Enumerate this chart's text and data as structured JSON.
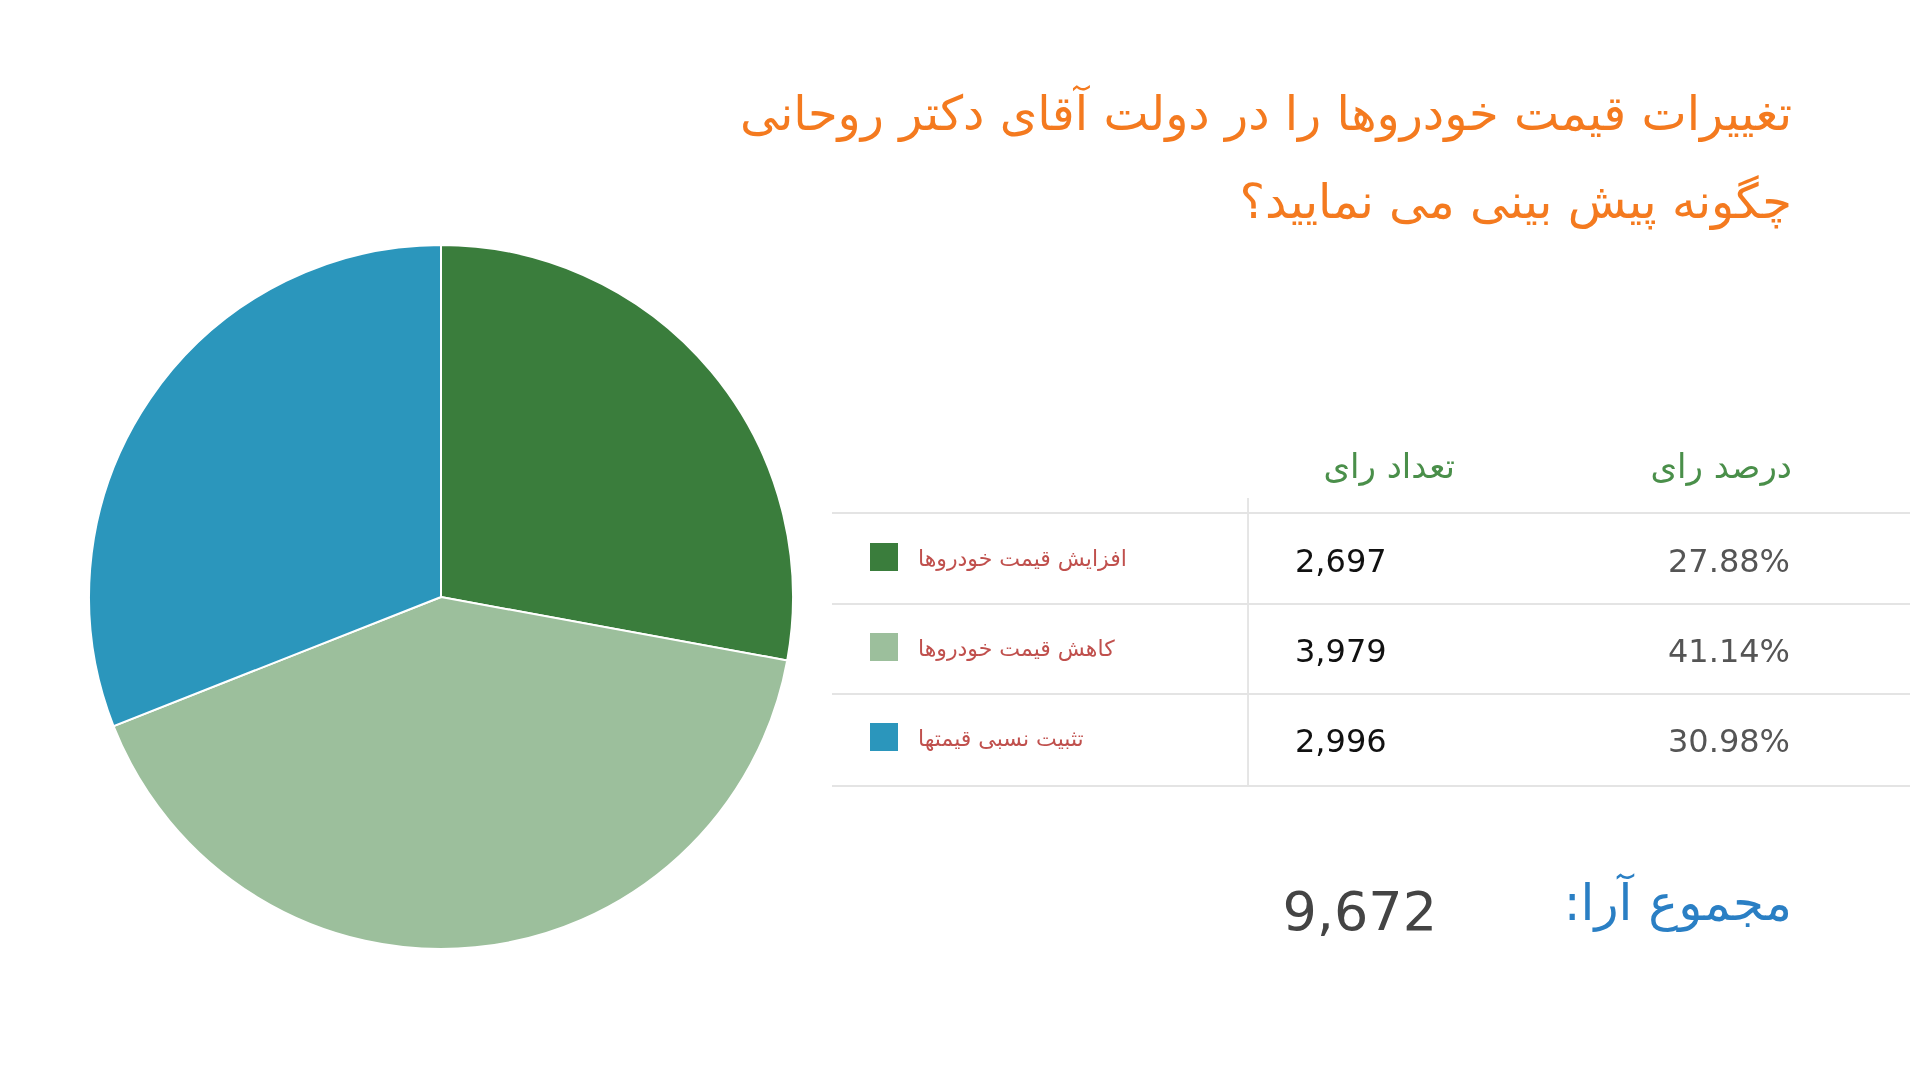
{
  "chart_data": {
    "type": "pie",
    "title": "تغییرات قیمت خودروها را در دولت آقای دکتر روحانی چگونه پیش بینی می نمایید؟",
    "categories": [
      "افزایش قیمت خودروها",
      "کاهش قیمت خودروها",
      "تثبیت نسبی قیمتها"
    ],
    "values": [
      2697,
      3979,
      2996
    ],
    "colors": [
      "#3a7d3c",
      "#9cbf9c",
      "#2b96bc"
    ],
    "value_labels": [
      "2,697",
      "3,979",
      "2,996"
    ],
    "legend": "right",
    "annotations": [
      "تعداد رای",
      "درصد رای",
      "مجموع آرا:",
      "9,672",
      "27.88%",
      "41.14%",
      "30.98%"
    ]
  }
}
